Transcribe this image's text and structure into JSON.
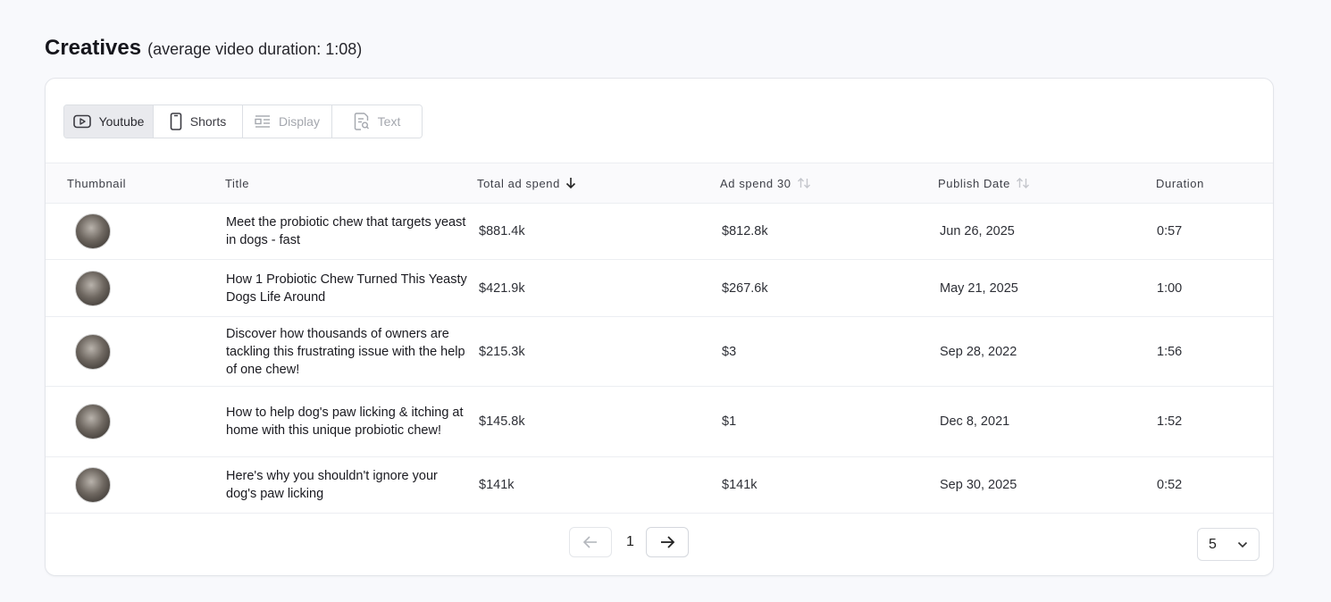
{
  "section": {
    "title": "Creatives",
    "subtitle": "(average video duration: 1:08)"
  },
  "tabs": [
    {
      "label": "Youtube",
      "icon": "youtube-icon",
      "state": "active"
    },
    {
      "label": "Shorts",
      "icon": "mobile-icon",
      "state": "enabled"
    },
    {
      "label": "Display",
      "icon": "display-icon",
      "state": "disabled"
    },
    {
      "label": "Text",
      "icon": "text-search-icon",
      "state": "disabled"
    }
  ],
  "table": {
    "columns": [
      {
        "label": "Thumbnail"
      },
      {
        "label": "Title"
      },
      {
        "label": "Total ad spend",
        "sort": "desc"
      },
      {
        "label": "Ad spend 30",
        "sort": "none"
      },
      {
        "label": "Publish Date",
        "sort": "none"
      },
      {
        "label": "Duration"
      }
    ],
    "rows": [
      {
        "title": "Meet the probiotic chew that targets yeast in dogs - fast",
        "total_ad_spend": "$881.4k",
        "ad_spend_30": "$812.8k",
        "publish_date": "Jun 26, 2025",
        "duration": "0:57"
      },
      {
        "title": "How 1 Probiotic Chew Turned This Yeasty Dogs Life Around",
        "total_ad_spend": "$421.9k",
        "ad_spend_30": "$267.6k",
        "publish_date": "May 21, 2025",
        "duration": "1:00"
      },
      {
        "title": "Discover how thousands of owners are tackling this frustrating issue with the help of one chew!",
        "total_ad_spend": "$215.3k",
        "ad_spend_30": "$3",
        "publish_date": "Sep 28, 2022",
        "duration": "1:56"
      },
      {
        "title": "How to help dog's paw licking & itching at home with this unique probiotic chew!",
        "total_ad_spend": "$145.8k",
        "ad_spend_30": "$1",
        "publish_date": "Dec 8, 2021",
        "duration": "1:52"
      },
      {
        "title": "Here's why you shouldn't ignore your dog's paw licking",
        "total_ad_spend": "$141k",
        "ad_spend_30": "$141k",
        "publish_date": "Sep 30, 2025",
        "duration": "0:52"
      }
    ]
  },
  "pagination": {
    "current_page": "1",
    "page_size": "5"
  },
  "colors": {
    "background": "#f8f9fc",
    "active_tab": "#e9eaee",
    "border": "#e3e5ea"
  }
}
